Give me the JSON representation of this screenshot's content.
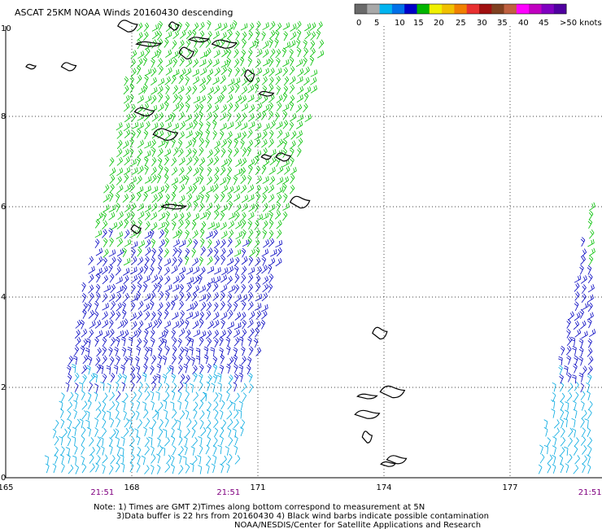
{
  "chart_data": {
    "type": "scatter",
    "title": "ASCAT 25KM NOAA Winds 20160430 descending",
    "legend": {
      "placement": "top-right",
      "labels": [
        "0",
        "5",
        "10",
        "15",
        "20",
        "25",
        "30",
        "35",
        "40",
        "45",
        ">50 knots"
      ],
      "colors": [
        "#6a6a6a",
        "#a8a8a8",
        "#00b4f0",
        "#0070e8",
        "#0000c8",
        "#00b400",
        "#f0f000",
        "#f0c000",
        "#f08000",
        "#e83030",
        "#a01010",
        "#804020",
        "#c06040",
        "#ff00ff",
        "#c000c0",
        "#8000c0",
        "#5000a0"
      ]
    },
    "xlim": [
      165,
      179
    ],
    "ylim": [
      0,
      10
    ],
    "x_ticks": [
      "165",
      "168",
      "171",
      "174",
      "177"
    ],
    "y_ticks": [
      "0",
      "2",
      "4",
      "6",
      "8",
      "10"
    ],
    "grid": true,
    "pass_times": [
      "21:51",
      "21:51",
      "21:51"
    ],
    "swaths": [
      {
        "name": "",
        "corners": [
          [
            165.9,
            0
          ],
          [
            168.1,
            10
          ],
          [
            172.6,
            10
          ],
          [
            170.4,
            0
          ]
        ]
      },
      {
        "name": "",
        "corners": [
          [
            177.6,
            0
          ],
          [
            179.0,
            6.6
          ],
          [
            179.0,
            0
          ]
        ]
      }
    ],
    "wind_speed_bands": [
      {
        "region": "north",
        "knots_range": [
          15,
          20
        ],
        "color": "#00c000"
      },
      {
        "region": "mid",
        "knots_range": [
          10,
          15
        ],
        "color": "#0000c0"
      },
      {
        "region": "south",
        "knots_range": [
          5,
          10
        ],
        "color": "#00a8e0"
      }
    ],
    "islands": [
      [
        165.6,
        9.1
      ],
      [
        166.5,
        9.1
      ],
      [
        167.9,
        10.0
      ],
      [
        168.4,
        9.6
      ],
      [
        169.0,
        10.0
      ],
      [
        169.3,
        9.4
      ],
      [
        169.6,
        9.7
      ],
      [
        170.2,
        9.6
      ],
      [
        170.8,
        8.9
      ],
      [
        171.2,
        8.5
      ],
      [
        168.3,
        8.1
      ],
      [
        168.8,
        7.6
      ],
      [
        171.2,
        7.1
      ],
      [
        171.6,
        7.1
      ],
      [
        172.0,
        6.1
      ],
      [
        169.0,
        6.0
      ],
      [
        168.1,
        5.5
      ],
      [
        173.9,
        3.2
      ],
      [
        173.6,
        1.8
      ],
      [
        173.6,
        1.4
      ],
      [
        173.6,
        0.9
      ],
      [
        174.1,
        0.3
      ],
      [
        174.3,
        0.4
      ],
      [
        174.2,
        1.9
      ]
    ]
  },
  "notes": {
    "line1": "Note: 1) Times are GMT 2)Times along bottom correspond to measurement at 5N",
    "line2": "3)Data buffer is 22 hrs from 20160430 4) Black wind barbs indicate possible contamination",
    "line3": "NOAA/NESDIS/Center for Satellite Applications and Research"
  }
}
